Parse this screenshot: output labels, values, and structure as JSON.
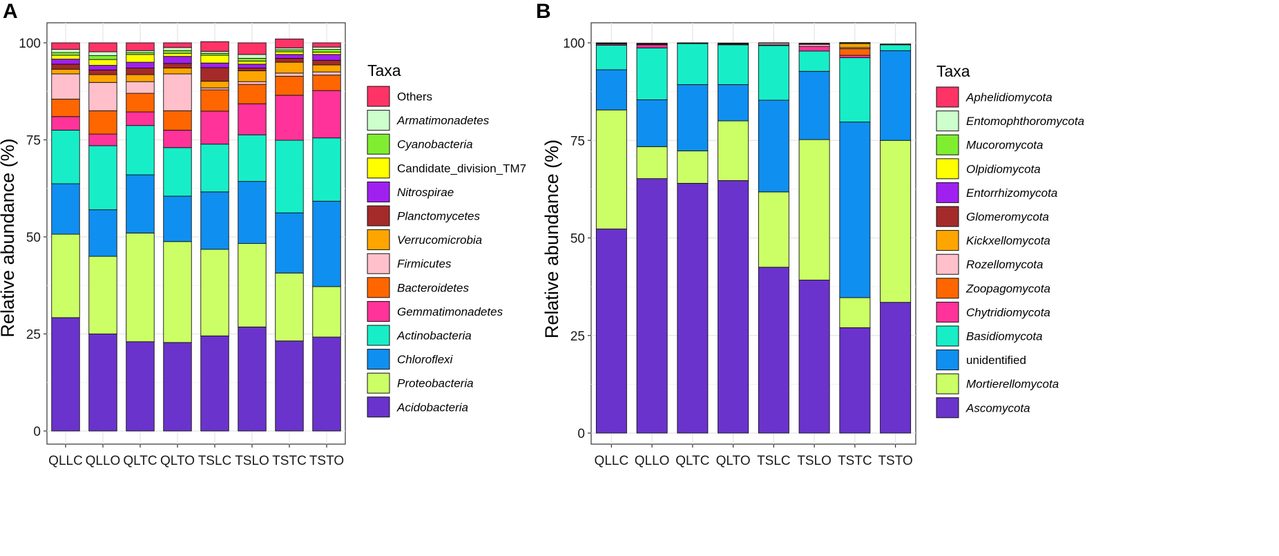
{
  "panels": {
    "a": {
      "letter": "A"
    },
    "b": {
      "letter": "B"
    }
  },
  "chart_data": [
    {
      "type": "bar",
      "stacked": true,
      "panel": "A",
      "categories": [
        "QLLC",
        "QLLO",
        "QLTC",
        "QLTO",
        "TSLC",
        "TSLO",
        "TSTC",
        "TSTO"
      ],
      "xlabel": "",
      "ylabel": "Relative abundance (%)",
      "ylim": [
        0,
        100
      ],
      "yticks": [
        0,
        25,
        50,
        75,
        100
      ],
      "grid": true,
      "legend": {
        "title": "Taxa",
        "placement": "right"
      },
      "series": [
        {
          "name": "Acidobacteria",
          "italic": true,
          "color": "#6a33cc",
          "values": [
            29.2,
            25.0,
            23.0,
            22.8,
            24.5,
            26.8,
            23.2,
            24.2
          ]
        },
        {
          "name": "Proteobacteria",
          "italic": true,
          "color": "#ccff66",
          "values": [
            21.5,
            20.0,
            28.0,
            26.0,
            22.3,
            21.5,
            17.5,
            13.0
          ]
        },
        {
          "name": "Chloroflexi",
          "italic": true,
          "color": "#0f8ff0",
          "values": [
            13.0,
            12.0,
            15.0,
            11.7,
            14.8,
            16.0,
            15.5,
            22.0
          ]
        },
        {
          "name": "Actinobacteria",
          "italic": true,
          "color": "#17eec8",
          "values": [
            13.8,
            16.5,
            12.7,
            12.5,
            12.3,
            12.0,
            18.7,
            16.3
          ]
        },
        {
          "name": "Gemmatimonadetes",
          "italic": true,
          "color": "#ff3399",
          "values": [
            3.5,
            3.0,
            3.5,
            4.5,
            8.5,
            8.0,
            11.6,
            12.2
          ]
        },
        {
          "name": "Bacteroidetes",
          "italic": true,
          "color": "#ff6600",
          "values": [
            4.5,
            6.0,
            4.8,
            5.0,
            5.5,
            5.0,
            4.9,
            4.0
          ]
        },
        {
          "name": "Firmicutes",
          "italic": true,
          "color": "#ffc0cb",
          "values": [
            6.5,
            7.3,
            3.0,
            9.5,
            0.5,
            0.7,
            0.8,
            0.8
          ]
        },
        {
          "name": "Verrucomicrobia",
          "italic": true,
          "color": "#ffa500",
          "values": [
            1.2,
            2.0,
            1.8,
            1.5,
            1.7,
            2.8,
            2.8,
            1.8
          ]
        },
        {
          "name": "Planctomycetes",
          "italic": true,
          "color": "#a52a2a",
          "values": [
            1.3,
            1.2,
            1.7,
            1.2,
            3.5,
            0.7,
            1.0,
            1.2
          ]
        },
        {
          "name": "Nitrospirae",
          "italic": true,
          "color": "#a020f0",
          "values": [
            1.3,
            1.2,
            1.5,
            1.8,
            1.2,
            1.0,
            1.0,
            1.5
          ]
        },
        {
          "name": "Candidate_division_TM7",
          "italic": false,
          "color": "#ffff00",
          "values": [
            1.0,
            1.5,
            2.0,
            0.8,
            2.0,
            0.8,
            0.7,
            0.6
          ]
        },
        {
          "name": "Cyanobacteria",
          "italic": true,
          "color": "#80ee30",
          "values": [
            0.7,
            1.0,
            0.5,
            0.7,
            0.5,
            0.7,
            0.5,
            0.7
          ]
        },
        {
          "name": "Armatimonadetes",
          "italic": true,
          "color": "#ccffcc",
          "values": [
            0.8,
            1.0,
            0.5,
            0.8,
            0.5,
            1.0,
            0.5,
            0.6
          ]
        },
        {
          "name": "Others",
          "italic": false,
          "color": "#ff3366",
          "values": [
            1.7,
            2.3,
            2.0,
            1.2,
            2.5,
            3.0,
            2.3,
            1.1
          ]
        }
      ]
    },
    {
      "type": "bar",
      "stacked": true,
      "panel": "B",
      "categories": [
        "QLLC",
        "QLLO",
        "QLTC",
        "QLTO",
        "TSLC",
        "TSLO",
        "TSTC",
        "TSTO"
      ],
      "xlabel": "",
      "ylabel": "Relative abundance (%)",
      "ylim": [
        0,
        100
      ],
      "yticks": [
        0,
        25,
        50,
        75,
        100
      ],
      "grid": true,
      "legend": {
        "title": "Taxa",
        "placement": "right"
      },
      "series": [
        {
          "name": "Ascomycota",
          "italic": true,
          "color": "#6a33cc",
          "values": [
            52.3,
            65.2,
            64.0,
            64.7,
            42.5,
            39.2,
            27.0,
            33.5
          ]
        },
        {
          "name": "Mortierellomycota",
          "italic": true,
          "color": "#ccff66",
          "values": [
            30.5,
            8.2,
            8.3,
            15.3,
            19.3,
            36.0,
            7.7,
            41.5
          ]
        },
        {
          "name": "unidentified",
          "italic": false,
          "color": "#0f8ff0",
          "values": [
            10.3,
            12.0,
            17.0,
            9.3,
            23.5,
            17.5,
            45.0,
            23.0
          ]
        },
        {
          "name": "Basidiomycota",
          "italic": true,
          "color": "#17eec8",
          "values": [
            6.3,
            13.3,
            10.5,
            10.2,
            14.0,
            5.2,
            16.5,
            1.5
          ]
        },
        {
          "name": "Chytridiomycota",
          "italic": true,
          "color": "#ff3399",
          "values": [
            0.3,
            0.8,
            0.05,
            0.05,
            0.2,
            1.2,
            0.6,
            0.1
          ]
        },
        {
          "name": "Zoopagomycota",
          "italic": true,
          "color": "#ff6600",
          "values": [
            0.0,
            0.0,
            0.0,
            0.0,
            0.0,
            0.0,
            1.7,
            0.0
          ]
        },
        {
          "name": "Rozellomycota",
          "italic": true,
          "color": "#ffc0cb",
          "values": [
            0.1,
            0.1,
            0.05,
            0.1,
            0.4,
            0.5,
            0.3,
            0.0
          ]
        },
        {
          "name": "Kickxellomycota",
          "italic": true,
          "color": "#ffa500",
          "values": [
            0.0,
            0.0,
            0.0,
            0.0,
            0.0,
            0.0,
            1.0,
            0.0
          ]
        },
        {
          "name": "Glomeromycota",
          "italic": true,
          "color": "#a52a2a",
          "values": [
            0.1,
            0.2,
            0.05,
            0.2,
            0.1,
            0.2,
            0.1,
            0.1
          ]
        },
        {
          "name": "Entorrhizomycota",
          "italic": true,
          "color": "#a020f0",
          "values": [
            0.0,
            0.0,
            0.0,
            0.0,
            0.0,
            0.0,
            0.0,
            0.0
          ]
        },
        {
          "name": "Olpidiomycota",
          "italic": true,
          "color": "#ffff00",
          "values": [
            0.0,
            0.0,
            0.0,
            0.0,
            0.0,
            0.0,
            0.2,
            0.0
          ]
        },
        {
          "name": "Mucoromycota",
          "italic": true,
          "color": "#80ee30",
          "values": [
            0.0,
            0.0,
            0.0,
            0.0,
            0.0,
            0.0,
            0.0,
            0.0
          ]
        },
        {
          "name": "Entomophthoromycota",
          "italic": true,
          "color": "#ccffcc",
          "values": [
            0.0,
            0.0,
            0.0,
            0.0,
            0.0,
            0.0,
            0.0,
            0.0
          ]
        },
        {
          "name": "Aphelidiomycota",
          "italic": true,
          "color": "#ff3366",
          "values": [
            0.1,
            0.1,
            0.05,
            0.1,
            0.0,
            0.1,
            0.0,
            0.0
          ]
        }
      ]
    }
  ]
}
